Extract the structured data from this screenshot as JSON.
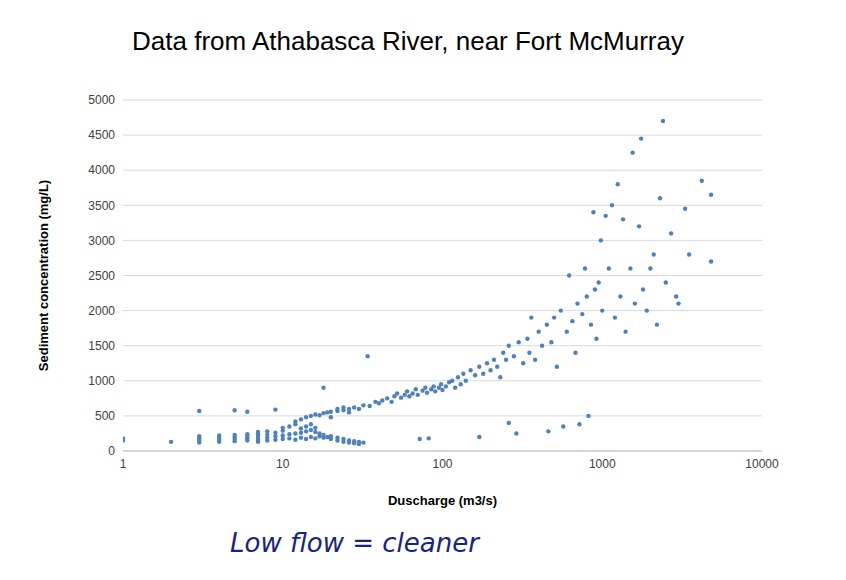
{
  "chart_data": {
    "type": "scatter",
    "title": "Data from Athabasca River, near Fort McMurray",
    "x_label": "Duscharge (m3/s)",
    "y_label": "Sediment concentration (mg/L)",
    "annotation": "Low flow = cleaner",
    "x": [
      1,
      1,
      2,
      3,
      3,
      3,
      3,
      3,
      4,
      4,
      4,
      4,
      5,
      5,
      5,
      5,
      5,
      6,
      6,
      6,
      6,
      6,
      7,
      7,
      7,
      7,
      7,
      8,
      8,
      8,
      8,
      9,
      9,
      9,
      9,
      10,
      10,
      10,
      10,
      11,
      11,
      11,
      12,
      12,
      12,
      12,
      13,
      13,
      13,
      13,
      14,
      14,
      14,
      14,
      15,
      15,
      15,
      15,
      16,
      16,
      16,
      16,
      17,
      17,
      17,
      18,
      18,
      18,
      18,
      19,
      19,
      20,
      20,
      20,
      20,
      22,
      22,
      22,
      22,
      24,
      24,
      24,
      24,
      26,
      26,
      26,
      26,
      28,
      28,
      28,
      30,
      30,
      30,
      32,
      32,
      34,
      35,
      38,
      40,
      42,
      45,
      48,
      50,
      52,
      55,
      58,
      60,
      62,
      65,
      68,
      70,
      72,
      75,
      78,
      80,
      82,
      85,
      88,
      90,
      95,
      98,
      100,
      105,
      110,
      115,
      120,
      125,
      130,
      135,
      140,
      150,
      160,
      170,
      170,
      180,
      190,
      200,
      210,
      220,
      230,
      240,
      250,
      260,
      260,
      280,
      290,
      300,
      320,
      340,
      350,
      360,
      380,
      400,
      420,
      450,
      460,
      480,
      500,
      520,
      550,
      570,
      600,
      620,
      650,
      680,
      700,
      720,
      750,
      780,
      800,
      820,
      850,
      880,
      900,
      920,
      950,
      980,
      1000,
      1050,
      1100,
      1150,
      1200,
      1250,
      1300,
      1350,
      1400,
      1500,
      1550,
      1600,
      1700,
      1750,
      1800,
      1900,
      2000,
      2100,
      2200,
      2300,
      2400,
      2500,
      2700,
      2900,
      3000,
      3300,
      3500,
      4200,
      4800,
      4800
    ],
    "values": [
      150,
      180,
      130,
      120,
      150,
      180,
      210,
      570,
      130,
      160,
      190,
      220,
      140,
      170,
      200,
      230,
      580,
      150,
      180,
      210,
      240,
      560,
      130,
      160,
      200,
      240,
      270,
      150,
      190,
      230,
      280,
      160,
      210,
      260,
      590,
      170,
      220,
      290,
      330,
      180,
      240,
      350,
      160,
      250,
      380,
      420,
      190,
      260,
      320,
      450,
      170,
      280,
      350,
      480,
      200,
      300,
      380,
      500,
      180,
      270,
      330,
      520,
      210,
      250,
      510,
      190,
      230,
      540,
      900,
      200,
      550,
      170,
      210,
      560,
      480,
      150,
      190,
      570,
      600,
      130,
      170,
      580,
      620,
      120,
      150,
      600,
      550,
      110,
      140,
      620,
      100,
      130,
      600,
      120,
      650,
      1350,
      640,
      700,
      680,
      720,
      750,
      700,
      780,
      820,
      760,
      800,
      850,
      780,
      820,
      880,
      800,
      170,
      860,
      900,
      830,
      180,
      880,
      920,
      850,
      900,
      950,
      870,
      920,
      980,
      1000,
      900,
      1050,
      950,
      1100,
      1000,
      1150,
      1080,
      200,
      1200,
      1100,
      1250,
      1150,
      1300,
      1200,
      1050,
      1400,
      1300,
      400,
      1500,
      1350,
      250,
      1550,
      1250,
      1600,
      1400,
      1900,
      1300,
      1700,
      1500,
      1800,
      280,
      1550,
      1900,
      1200,
      2000,
      350,
      1700,
      2500,
      1850,
      1400,
      2100,
      380,
      1950,
      2600,
      2200,
      500,
      1800,
      3400,
      2300,
      1600,
      2400,
      3000,
      2000,
      3350,
      2600,
      3500,
      1900,
      3800,
      2200,
      3300,
      1700,
      2600,
      4250,
      2100,
      3200,
      4450,
      2300,
      2000,
      2600,
      2800,
      1800,
      3600,
      4700,
      2400,
      3100,
      2200,
      2100,
      3450,
      2800,
      3850,
      3650,
      2700
    ],
    "xlim": [
      1,
      10000
    ],
    "xticks": [
      1,
      10,
      100,
      1000,
      10000
    ],
    "ylim": [
      0,
      5000
    ],
    "yticks": [
      0,
      500,
      1000,
      1500,
      2000,
      2500,
      3000,
      3500,
      4000,
      4500,
      5000
    ],
    "log": "x",
    "grid": "y",
    "color": "#4f81bd",
    "marker": "circle"
  }
}
